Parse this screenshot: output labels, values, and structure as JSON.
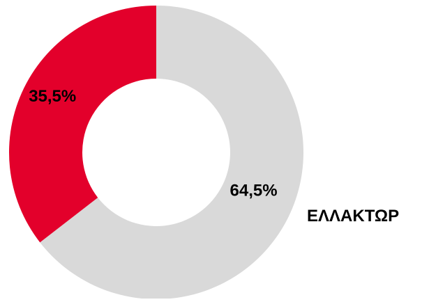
{
  "chart_data": {
    "type": "pie",
    "variant": "donut",
    "slices": [
      {
        "label": "",
        "value": 64.5,
        "display": "64,5%",
        "color": "#d9d9d9"
      },
      {
        "label": "",
        "value": 35.5,
        "display": "35,5%",
        "color": "#e3002b"
      }
    ],
    "start_angle_deg": 0,
    "direction": "clockwise",
    "legend": {
      "text": "ΕΛΛΑΚΤΩΡ",
      "placement": "right"
    }
  }
}
